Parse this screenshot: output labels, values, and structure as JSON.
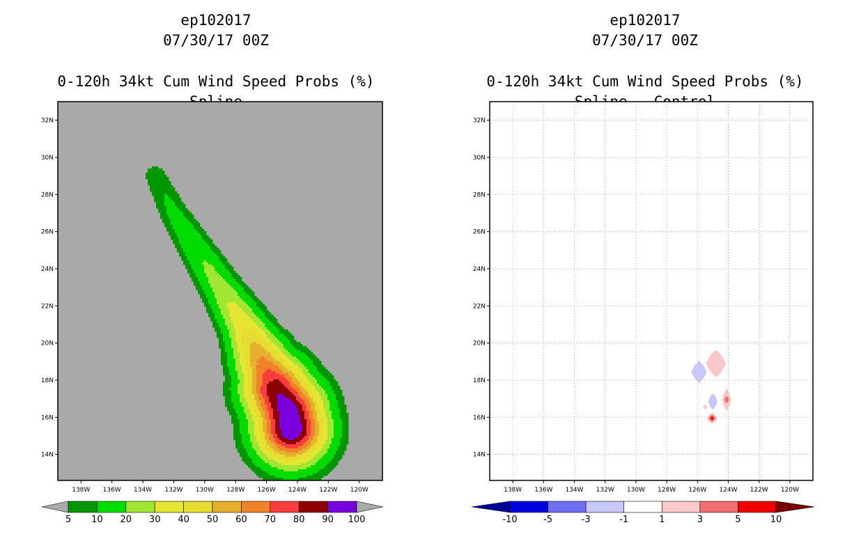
{
  "colors": {
    "land_background": "#a9a9a9",
    "frame": "#000000",
    "grid_line": "#b4b4b4"
  },
  "chart_data": [
    {
      "type": "heatmap",
      "panel": "left",
      "title_lines": [
        "ep102017",
        "07/30/17 00Z"
      ],
      "subtitle_lines": [
        "0-120h 34kt Cum Wind Speed Probs (%)",
        "Spline"
      ],
      "units": "%",
      "x_ticks": [
        "138W",
        "136W",
        "134W",
        "132W",
        "130W",
        "128W",
        "126W",
        "124W",
        "122W",
        "120W"
      ],
      "y_ticks": [
        "14N",
        "16N",
        "18N",
        "20N",
        "22N",
        "24N",
        "26N",
        "28N",
        "30N",
        "32N"
      ],
      "xlim_lon_west": [
        139.5,
        118.5
      ],
      "ylim_lat": [
        12.6,
        33.0
      ],
      "grid": false,
      "colorbar": {
        "labels": [
          "5",
          "10",
          "20",
          "30",
          "40",
          "50",
          "60",
          "70",
          "80",
          "90",
          "100"
        ],
        "colors": [
          "#009600",
          "#00dc00",
          "#a0e632",
          "#e6e632",
          "#e6dc32",
          "#e6af2d",
          "#f08228",
          "#fa3c3c",
          "#8c0000",
          "#7800dc"
        ],
        "end_under": "#a9a9a9",
        "end_over": "#a9a9a9"
      },
      "track": [
        {
          "lon": 133.2,
          "lat": 29.0,
          "max": 8
        },
        {
          "lon": 132.0,
          "lat": 27.0,
          "max": 12
        },
        {
          "lon": 130.5,
          "lat": 25.0,
          "max": 18
        },
        {
          "lon": 129.0,
          "lat": 23.0,
          "max": 25
        },
        {
          "lon": 127.5,
          "lat": 21.0,
          "max": 38
        },
        {
          "lon": 126.3,
          "lat": 19.0,
          "max": 62
        },
        {
          "lon": 125.4,
          "lat": 17.5,
          "max": 88
        },
        {
          "lon": 124.6,
          "lat": 16.3,
          "max": 98
        },
        {
          "lon": 124.4,
          "lat": 15.4,
          "max": 100
        }
      ]
    },
    {
      "type": "heatmap",
      "panel": "right",
      "title_lines": [
        "ep102017",
        "07/30/17 00Z"
      ],
      "subtitle_lines": [
        "0-120h 34kt Cum Wind Speed Probs (%)",
        "Spline - Control"
      ],
      "units": "%",
      "x_ticks": [
        "138W",
        "136W",
        "134W",
        "132W",
        "130W",
        "128W",
        "126W",
        "124W",
        "122W",
        "120W"
      ],
      "y_ticks": [
        "14N",
        "16N",
        "18N",
        "20N",
        "22N",
        "24N",
        "26N",
        "28N",
        "30N",
        "32N"
      ],
      "xlim_lon_west": [
        139.5,
        118.5
      ],
      "ylim_lat": [
        12.6,
        33.0
      ],
      "grid": true,
      "colorbar": {
        "labels": [
          "-10",
          "-5",
          "-3",
          "-1",
          "1",
          "3",
          "5",
          "10"
        ],
        "colors": [
          "#0000dc",
          "#6e6ef0",
          "#c8c8fa",
          "#ffffff",
          "#fac8c8",
          "#f07070",
          "#f00000"
        ],
        "end_under": "#000096",
        "end_over": "#780000"
      },
      "features": [
        {
          "lon": 124.8,
          "lat": 18.9,
          "value": 2,
          "dlon": 0.65,
          "dlat": 0.75
        },
        {
          "lon": 125.9,
          "lat": 18.45,
          "value": -2,
          "dlon": 0.5,
          "dlat": 0.6
        },
        {
          "lon": 125.0,
          "lat": 16.85,
          "value": -2,
          "dlon": 0.3,
          "dlat": 0.45
        },
        {
          "lon": 124.1,
          "lat": 16.95,
          "value": 2,
          "dlon": 0.3,
          "dlat": 0.6
        },
        {
          "lon": 124.1,
          "lat": 16.95,
          "value": 4,
          "dlon": 0.15,
          "dlat": 0.2
        },
        {
          "lon": 125.5,
          "lat": 16.55,
          "value": 2,
          "dlon": 0.12,
          "dlat": 0.15
        },
        {
          "lon": 125.05,
          "lat": 15.95,
          "value": 2,
          "dlon": 0.35,
          "dlat": 0.3
        },
        {
          "lon": 125.05,
          "lat": 15.95,
          "value": 4,
          "dlon": 0.22,
          "dlat": 0.2
        },
        {
          "lon": 125.05,
          "lat": 15.95,
          "value": 8,
          "dlon": 0.1,
          "dlat": 0.1
        }
      ]
    }
  ]
}
